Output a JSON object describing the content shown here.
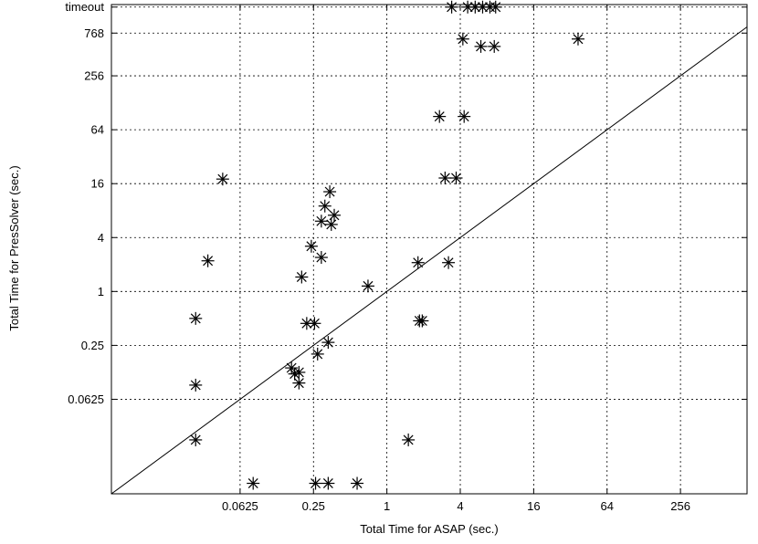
{
  "chart_data": {
    "type": "scatter",
    "xlabel": "Total Time for ASAP (sec.)",
    "ylabel": "Total Time for PresSolver (sec.)",
    "x_scale": "log2",
    "y_scale": "log2",
    "xlim": [
      0.0055,
      900
    ],
    "ylim": [
      0.0055,
      1600
    ],
    "x_ticks": [
      {
        "value": 0.0625,
        "label": "0.0625"
      },
      {
        "value": 0.25,
        "label": "0.25"
      },
      {
        "value": 1,
        "label": "1"
      },
      {
        "value": 4,
        "label": "4"
      },
      {
        "value": 16,
        "label": "16"
      },
      {
        "value": 64,
        "label": "64"
      },
      {
        "value": 256,
        "label": "256"
      }
    ],
    "y_ticks": [
      {
        "value": 0.0625,
        "label": "0.0625"
      },
      {
        "value": 0.25,
        "label": "0.25"
      },
      {
        "value": 1,
        "label": "1"
      },
      {
        "value": 4,
        "label": "4"
      },
      {
        "value": 16,
        "label": "16"
      },
      {
        "value": 64,
        "label": "64"
      },
      {
        "value": 256,
        "label": "256"
      },
      {
        "value": 768,
        "label": "768"
      },
      {
        "value": 1500,
        "label": "timeout"
      }
    ],
    "grid": true,
    "reference_line": "y = x",
    "marker": "asterisk",
    "points": [
      {
        "x": 3.4,
        "y": 1500
      },
      {
        "x": 4.6,
        "y": 1500
      },
      {
        "x": 5.3,
        "y": 1500
      },
      {
        "x": 6.1,
        "y": 1500
      },
      {
        "x": 7.0,
        "y": 1500
      },
      {
        "x": 7.8,
        "y": 1500
      },
      {
        "x": 4.2,
        "y": 660
      },
      {
        "x": 5.9,
        "y": 545
      },
      {
        "x": 7.6,
        "y": 545
      },
      {
        "x": 37,
        "y": 660
      },
      {
        "x": 2.7,
        "y": 90
      },
      {
        "x": 4.3,
        "y": 90
      },
      {
        "x": 3.0,
        "y": 18.5
      },
      {
        "x": 3.7,
        "y": 18.5
      },
      {
        "x": 0.045,
        "y": 18
      },
      {
        "x": 0.34,
        "y": 13
      },
      {
        "x": 0.31,
        "y": 9.0
      },
      {
        "x": 0.37,
        "y": 7.1
      },
      {
        "x": 0.29,
        "y": 6.1
      },
      {
        "x": 0.35,
        "y": 5.6
      },
      {
        "x": 0.24,
        "y": 3.2
      },
      {
        "x": 0.29,
        "y": 2.4
      },
      {
        "x": 0.034,
        "y": 2.2
      },
      {
        "x": 0.2,
        "y": 1.45
      },
      {
        "x": 0.7,
        "y": 1.15
      },
      {
        "x": 1.8,
        "y": 2.1
      },
      {
        "x": 3.2,
        "y": 2.1
      },
      {
        "x": 0.027,
        "y": 0.5
      },
      {
        "x": 0.22,
        "y": 0.44
      },
      {
        "x": 0.255,
        "y": 0.44
      },
      {
        "x": 1.85,
        "y": 0.47
      },
      {
        "x": 1.95,
        "y": 0.47
      },
      {
        "x": 0.33,
        "y": 0.27
      },
      {
        "x": 0.27,
        "y": 0.2
      },
      {
        "x": 0.165,
        "y": 0.14
      },
      {
        "x": 0.175,
        "y": 0.12
      },
      {
        "x": 0.19,
        "y": 0.125
      },
      {
        "x": 0.19,
        "y": 0.095
      },
      {
        "x": 0.027,
        "y": 0.09
      },
      {
        "x": 0.027,
        "y": 0.022
      },
      {
        "x": 1.5,
        "y": 0.022
      },
      {
        "x": 0.08,
        "y": 0.0072
      },
      {
        "x": 0.26,
        "y": 0.0072
      },
      {
        "x": 0.33,
        "y": 0.0072
      },
      {
        "x": 0.57,
        "y": 0.0072
      }
    ]
  }
}
